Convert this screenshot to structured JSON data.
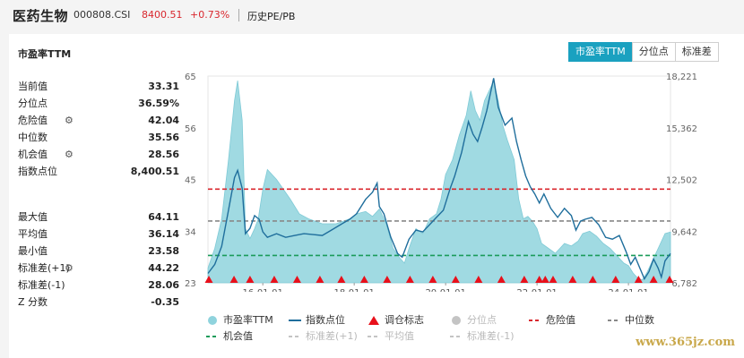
{
  "header": {
    "title": "医药生物",
    "code": "000808.CSI",
    "price": "8400.51",
    "change": "+0.73%",
    "tab": "历史PE/PB"
  },
  "panel": {
    "title": "市盈率TTM",
    "buttons": [
      "市盈率TTM",
      "分位点",
      "标准差"
    ],
    "active_button": 0
  },
  "stats": [
    {
      "label": "当前值",
      "value": "33.31",
      "gear": false
    },
    {
      "label": "分位点",
      "value": "36.59%",
      "gear": false
    },
    {
      "label": "危险值",
      "value": "42.04",
      "gear": true
    },
    {
      "label": "中位数",
      "value": "35.56",
      "gear": false
    },
    {
      "label": "机会值",
      "value": "28.56",
      "gear": true
    },
    {
      "label": "指数点位",
      "value": "8,400.51",
      "gear": false
    },
    {
      "label": "最大值",
      "value": "64.11",
      "gear": false
    },
    {
      "label": "平均值",
      "value": "36.14",
      "gear": false
    },
    {
      "label": "最小值",
      "value": "23.58",
      "gear": false
    },
    {
      "label": "标准差(+1)",
      "value": "44.22",
      "gear": true
    },
    {
      "label": "标准差(-1)",
      "value": "28.06",
      "gear": false
    },
    {
      "label": "Z 分数",
      "value": "-0.35",
      "gear": false
    }
  ],
  "colors": {
    "pe_area": "#8fd3dd",
    "index_line": "#1f6e9c",
    "danger": "#d9272e",
    "median": "#888888",
    "opportunity": "#1a9b5a",
    "marker": "#e8101b",
    "dim": "#c4c4c4"
  },
  "legend": [
    {
      "label": "市盈率TTM",
      "symbol": "dot",
      "color": "#8fd3dd",
      "dim": false
    },
    {
      "label": "指数点位",
      "symbol": "line",
      "color": "#1f6e9c",
      "dim": false
    },
    {
      "label": "调仓标志",
      "symbol": "triangle",
      "color": "#e8101b",
      "dim": false
    },
    {
      "label": "分位点",
      "symbol": "dot",
      "color": "#c4c4c4",
      "dim": true
    },
    {
      "label": "危险值",
      "symbol": "dash",
      "color": "#d9272e",
      "dim": false
    },
    {
      "label": "中位数",
      "symbol": "dash",
      "color": "#888888",
      "dim": false
    },
    {
      "label": "机会值",
      "symbol": "dash",
      "color": "#1a9b5a",
      "dim": false
    },
    {
      "label": "标准差(+1)",
      "symbol": "dash",
      "color": "#c4c4c4",
      "dim": true
    },
    {
      "label": "平均值",
      "symbol": "dash",
      "color": "#c4c4c4",
      "dim": true
    },
    {
      "label": "标准差(-1)",
      "symbol": "dash",
      "color": "#c4c4c4",
      "dim": true
    }
  ],
  "watermark": "www.365jz.com",
  "chart_data": {
    "type": "area",
    "x_ticks": [
      "16-01-01",
      "18-01-01",
      "20-01-01",
      "22-01-01",
      "24-01-01"
    ],
    "x_range": [
      2014.8,
      2024.92
    ],
    "y_left_ticks": [
      "65",
      "56",
      "45",
      "34",
      "23"
    ],
    "y_left_range": [
      23,
      65
    ],
    "y_right_ticks": [
      "18,221",
      "15,362",
      "12,502",
      "9,642",
      "6,782"
    ],
    "y_right_range": [
      6782,
      18221
    ],
    "thresholds": {
      "danger": 42.04,
      "median": 35.56,
      "opportunity": 28.56
    },
    "series": [
      {
        "name": "市盈率TTM",
        "axis": "left",
        "points": [
          [
            2014.8,
            26
          ],
          [
            2014.95,
            30
          ],
          [
            2015.1,
            36
          ],
          [
            2015.25,
            48
          ],
          [
            2015.38,
            60
          ],
          [
            2015.45,
            64.1
          ],
          [
            2015.55,
            56
          ],
          [
            2015.62,
            34
          ],
          [
            2015.72,
            32
          ],
          [
            2015.82,
            34
          ],
          [
            2015.9,
            36
          ],
          [
            2016.0,
            42
          ],
          [
            2016.1,
            46
          ],
          [
            2016.3,
            44
          ],
          [
            2016.6,
            40
          ],
          [
            2016.8,
            37
          ],
          [
            2017.0,
            36
          ],
          [
            2017.3,
            35
          ],
          [
            2017.6,
            35
          ],
          [
            2017.9,
            36
          ],
          [
            2018.05,
            37
          ],
          [
            2018.25,
            37.5
          ],
          [
            2018.4,
            36.5
          ],
          [
            2018.55,
            38
          ],
          [
            2018.7,
            35
          ],
          [
            2018.85,
            30
          ],
          [
            2019.0,
            28
          ],
          [
            2019.1,
            27
          ],
          [
            2019.2,
            30
          ],
          [
            2019.35,
            34
          ],
          [
            2019.5,
            33
          ],
          [
            2019.65,
            36
          ],
          [
            2019.8,
            37
          ],
          [
            2019.9,
            40
          ],
          [
            2020.0,
            45
          ],
          [
            2020.15,
            48
          ],
          [
            2020.3,
            53
          ],
          [
            2020.45,
            57
          ],
          [
            2020.55,
            62
          ],
          [
            2020.65,
            58
          ],
          [
            2020.75,
            56
          ],
          [
            2020.85,
            60
          ],
          [
            2020.95,
            62
          ],
          [
            2021.05,
            64
          ],
          [
            2021.15,
            60
          ],
          [
            2021.25,
            55
          ],
          [
            2021.35,
            52
          ],
          [
            2021.5,
            48
          ],
          [
            2021.6,
            40
          ],
          [
            2021.7,
            36
          ],
          [
            2021.8,
            36.5
          ],
          [
            2021.9,
            35.5
          ],
          [
            2022.0,
            34
          ],
          [
            2022.1,
            31
          ],
          [
            2022.25,
            30
          ],
          [
            2022.4,
            29
          ],
          [
            2022.5,
            30
          ],
          [
            2022.6,
            31
          ],
          [
            2022.75,
            30.5
          ],
          [
            2022.9,
            31.5
          ],
          [
            2023.0,
            33
          ],
          [
            2023.15,
            33.5
          ],
          [
            2023.3,
            32.5
          ],
          [
            2023.45,
            31
          ],
          [
            2023.6,
            30
          ],
          [
            2023.75,
            28.5
          ],
          [
            2023.9,
            27
          ],
          [
            2024.0,
            26.5
          ],
          [
            2024.1,
            25
          ],
          [
            2024.2,
            24
          ],
          [
            2024.3,
            23.6
          ],
          [
            2024.4,
            25
          ],
          [
            2024.5,
            27
          ],
          [
            2024.6,
            29
          ],
          [
            2024.7,
            31
          ],
          [
            2024.8,
            33
          ],
          [
            2024.92,
            33.31
          ]
        ]
      },
      {
        "name": "指数点位",
        "axis": "right",
        "points": [
          [
            2014.8,
            7300
          ],
          [
            2014.95,
            7800
          ],
          [
            2015.1,
            8800
          ],
          [
            2015.25,
            10800
          ],
          [
            2015.38,
            12600
          ],
          [
            2015.45,
            13000
          ],
          [
            2015.55,
            12000
          ],
          [
            2015.62,
            9500
          ],
          [
            2015.72,
            9800
          ],
          [
            2015.82,
            10500
          ],
          [
            2015.92,
            10300
          ],
          [
            2016.0,
            9600
          ],
          [
            2016.1,
            9300
          ],
          [
            2016.3,
            9500
          ],
          [
            2016.5,
            9300
          ],
          [
            2016.7,
            9400
          ],
          [
            2016.9,
            9500
          ],
          [
            2017.1,
            9450
          ],
          [
            2017.3,
            9400
          ],
          [
            2017.5,
            9700
          ],
          [
            2017.7,
            10000
          ],
          [
            2017.9,
            10300
          ],
          [
            2018.05,
            10600
          ],
          [
            2018.25,
            11400
          ],
          [
            2018.4,
            11800
          ],
          [
            2018.5,
            12300
          ],
          [
            2018.55,
            11000
          ],
          [
            2018.65,
            10600
          ],
          [
            2018.8,
            9300
          ],
          [
            2018.95,
            8400
          ],
          [
            2019.05,
            8200
          ],
          [
            2019.2,
            9200
          ],
          [
            2019.35,
            9700
          ],
          [
            2019.5,
            9600
          ],
          [
            2019.65,
            10000
          ],
          [
            2019.8,
            10400
          ],
          [
            2019.95,
            10800
          ],
          [
            2020.1,
            12000
          ],
          [
            2020.2,
            12700
          ],
          [
            2020.35,
            14000
          ],
          [
            2020.5,
            15700
          ],
          [
            2020.6,
            15000
          ],
          [
            2020.7,
            14600
          ],
          [
            2020.8,
            15400
          ],
          [
            2020.9,
            16300
          ],
          [
            2021.0,
            17500
          ],
          [
            2021.05,
            18100
          ],
          [
            2021.15,
            16500
          ],
          [
            2021.3,
            15500
          ],
          [
            2021.45,
            15900
          ],
          [
            2021.55,
            14600
          ],
          [
            2021.65,
            13600
          ],
          [
            2021.75,
            12700
          ],
          [
            2021.85,
            12100
          ],
          [
            2021.95,
            11700
          ],
          [
            2022.05,
            11200
          ],
          [
            2022.15,
            11700
          ],
          [
            2022.3,
            10900
          ],
          [
            2022.45,
            10400
          ],
          [
            2022.6,
            10900
          ],
          [
            2022.75,
            10500
          ],
          [
            2022.85,
            9700
          ],
          [
            2022.95,
            10200
          ],
          [
            2023.05,
            10300
          ],
          [
            2023.2,
            10400
          ],
          [
            2023.35,
            10000
          ],
          [
            2023.5,
            9300
          ],
          [
            2023.65,
            9200
          ],
          [
            2023.8,
            9400
          ],
          [
            2023.95,
            8500
          ],
          [
            2024.05,
            7800
          ],
          [
            2024.15,
            8200
          ],
          [
            2024.25,
            7600
          ],
          [
            2024.35,
            7000
          ],
          [
            2024.45,
            7400
          ],
          [
            2024.55,
            8100
          ],
          [
            2024.65,
            7600
          ],
          [
            2024.72,
            7100
          ],
          [
            2024.8,
            8000
          ],
          [
            2024.92,
            8400.51
          ]
        ]
      }
    ],
    "markers_x": [
      2014.82,
      2015.37,
      2015.72,
      2016.25,
      2016.75,
      2017.25,
      2017.72,
      2018.22,
      2018.72,
      2019.22,
      2019.72,
      2020.22,
      2020.72,
      2021.22,
      2021.72,
      2022.05,
      2022.18,
      2022.35,
      2022.78,
      2023.22,
      2023.72,
      2024.22,
      2024.55,
      2024.9
    ]
  }
}
